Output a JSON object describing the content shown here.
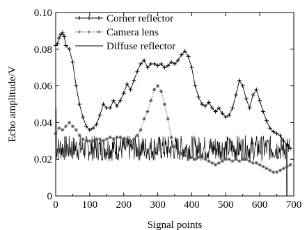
{
  "chart_data": {
    "type": "line",
    "xlabel": "Signal points",
    "ylabel": "Echo amplitude/V",
    "xlim": [
      0,
      700
    ],
    "ylim": [
      0,
      0.1
    ],
    "x_ticks": [
      0,
      100,
      200,
      300,
      400,
      500,
      600,
      700
    ],
    "y_ticks": [
      0,
      0.02,
      0.04,
      0.06,
      0.08,
      0.1
    ],
    "x_tick_labels": [
      "0",
      "100",
      "200",
      "300",
      "400",
      "500",
      "600",
      "700"
    ],
    "y_tick_labels": [
      "0",
      "0.02",
      "0.04",
      "0.06",
      "0.08",
      "0.10"
    ],
    "grid": false,
    "legend_position": "top",
    "series": [
      {
        "name": "Corner reflector",
        "style": "plus-marker-line",
        "x": [
          0,
          5,
          10,
          15,
          20,
          25,
          30,
          40,
          50,
          60,
          70,
          80,
          90,
          100,
          110,
          120,
          130,
          140,
          150,
          160,
          170,
          180,
          190,
          200,
          210,
          220,
          230,
          240,
          250,
          260,
          270,
          280,
          290,
          300,
          310,
          320,
          330,
          340,
          350,
          360,
          370,
          380,
          390,
          400,
          410,
          420,
          430,
          440,
          450,
          460,
          470,
          480,
          490,
          500,
          510,
          520,
          530,
          540,
          550,
          560,
          570,
          580,
          590,
          600,
          610,
          620,
          630,
          640,
          650,
          660,
          670,
          680,
          690
        ],
        "y": [
          0.082,
          0.083,
          0.086,
          0.088,
          0.089,
          0.087,
          0.082,
          0.08,
          0.073,
          0.06,
          0.05,
          0.043,
          0.038,
          0.036,
          0.037,
          0.039,
          0.044,
          0.05,
          0.048,
          0.048,
          0.052,
          0.049,
          0.052,
          0.056,
          0.061,
          0.058,
          0.063,
          0.068,
          0.072,
          0.074,
          0.07,
          0.072,
          0.072,
          0.071,
          0.072,
          0.07,
          0.071,
          0.073,
          0.072,
          0.074,
          0.077,
          0.079,
          0.076,
          0.07,
          0.06,
          0.054,
          0.05,
          0.049,
          0.051,
          0.048,
          0.046,
          0.048,
          0.045,
          0.043,
          0.044,
          0.048,
          0.055,
          0.063,
          0.06,
          0.053,
          0.048,
          0.055,
          0.058,
          0.052,
          0.046,
          0.041,
          0.037,
          0.035,
          0.034,
          0.033,
          0.03,
          0.028,
          0.026
        ]
      },
      {
        "name": "Camera lens",
        "style": "dotted-star-marker-line",
        "x": [
          0,
          10,
          20,
          30,
          40,
          50,
          60,
          70,
          80,
          90,
          100,
          110,
          120,
          130,
          140,
          150,
          160,
          170,
          180,
          190,
          200,
          210,
          220,
          230,
          240,
          250,
          260,
          270,
          280,
          290,
          300,
          310,
          320,
          330,
          340,
          350,
          360,
          370,
          380,
          390,
          400,
          410,
          420,
          430,
          440,
          450,
          460,
          470,
          480,
          490,
          500,
          510,
          520,
          530,
          540,
          550,
          560,
          570,
          580,
          590,
          600,
          610,
          620,
          630,
          640,
          650,
          660,
          670,
          680,
          690
        ],
        "y": [
          0.034,
          0.037,
          0.036,
          0.038,
          0.04,
          0.038,
          0.036,
          0.033,
          0.031,
          0.03,
          0.03,
          0.03,
          0.031,
          0.031,
          0.03,
          0.031,
          0.032,
          0.031,
          0.032,
          0.032,
          0.031,
          0.031,
          0.03,
          0.031,
          0.033,
          0.036,
          0.042,
          0.046,
          0.052,
          0.058,
          0.06,
          0.057,
          0.05,
          0.042,
          0.032,
          0.027,
          0.024,
          0.023,
          0.022,
          0.021,
          0.021,
          0.02,
          0.021,
          0.022,
          0.02,
          0.019,
          0.018,
          0.017,
          0.018,
          0.019,
          0.02,
          0.02,
          0.019,
          0.02,
          0.019,
          0.02,
          0.02,
          0.019,
          0.018,
          0.018,
          0.017,
          0.016,
          0.015,
          0.014,
          0.013,
          0.013,
          0.014,
          0.015,
          0.016,
          0.017
        ]
      },
      {
        "name": "Diffuse reflector",
        "style": "solid-noisy-line",
        "baseline": 0.026,
        "spread": 0.007,
        "spikes": [
          {
            "x": 0,
            "y": 0.048
          },
          {
            "x": 680,
            "y": 0.0
          }
        ],
        "x_range": [
          0,
          690
        ]
      }
    ]
  }
}
